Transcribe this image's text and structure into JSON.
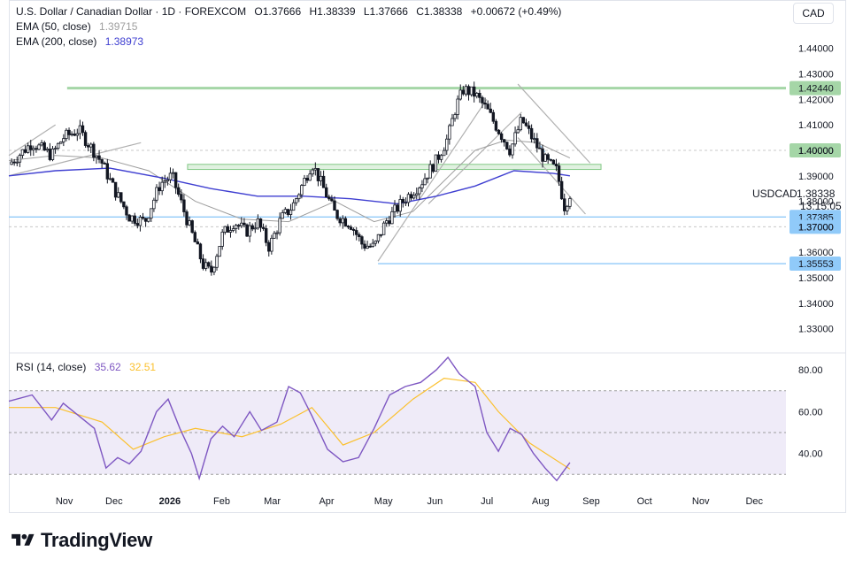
{
  "header": {
    "title": "U.S. Dollar / Canadian Dollar · 1D · FOREXCOM",
    "open": "O1.37666",
    "high": "H1.38339",
    "low": "L1.37666",
    "close": "C1.38338",
    "change": "+0.00672 (+0.49%)",
    "ema50_label": "EMA (50, close)",
    "ema50_value": "1.39715",
    "ema200_label": "EMA (200, close)",
    "ema200_value": "1.38973",
    "currency": "CAD"
  },
  "symbol": {
    "name": "USDCAD",
    "price": "1.38338",
    "countdown": "13:15:05"
  },
  "rsi_header": {
    "label": "RSI (14, close)",
    "value": "35.62",
    "ma_value": "32.51"
  },
  "brand": {
    "name": "TradingView"
  },
  "colors": {
    "up": "#131722",
    "down": "#131722",
    "ema50": "#9e9e9e",
    "ema200": "#3f3fd1",
    "support": "#90caf9",
    "resistance": "#a5d6a7",
    "rsi": "#7e57c2",
    "rsi_ma": "#fbc02d"
  },
  "chart_data": [
    {
      "type": "candlestick",
      "title": "U.S. Dollar / Canadian Dollar · 1D · FOREXCOM",
      "x_ticks": [
        "Nov",
        "Dec",
        "2026",
        "Feb",
        "Mar",
        "Apr",
        "May",
        "Jun",
        "Jul",
        "Aug",
        "Sep",
        "Oct",
        "Nov",
        "Dec"
      ],
      "y_ticks": [
        1.44,
        1.43,
        1.42,
        1.41,
        1.4,
        1.39,
        1.38,
        1.37,
        1.36,
        1.35,
        1.34,
        1.33
      ],
      "y_tick_labels": [
        "1.44000",
        "1.43000",
        "1.42000",
        "1.41000",
        "1.40000",
        "1.39000",
        "1.38000",
        "1.37000",
        "1.36000",
        "1.35000",
        "1.34000",
        "1.33000"
      ],
      "ylim": [
        1.325,
        1.4465
      ],
      "price_levels": [
        {
          "value": 1.4244,
          "label": "1.42440",
          "kind": "resistance"
        },
        {
          "value": 1.4,
          "label": "1.40000",
          "kind": "round"
        },
        {
          "value": 1.37385,
          "label": "1.37385",
          "kind": "support"
        },
        {
          "value": 1.37,
          "label": "1.37000",
          "kind": "support"
        },
        {
          "value": 1.35553,
          "label": "1.35553",
          "kind": "support"
        }
      ],
      "last_price": {
        "value": 1.38338,
        "label": "1.38338"
      },
      "zone": {
        "from": 1.3925,
        "to": 1.3945
      },
      "close_path": [
        [
          0,
          1.3945
        ],
        [
          0.03,
          1.403
        ],
        [
          0.055,
          1.398
        ],
        [
          0.07,
          1.405
        ],
        [
          0.09,
          1.408
        ],
        [
          0.12,
          1.395
        ],
        [
          0.135,
          1.385
        ],
        [
          0.155,
          1.374
        ],
        [
          0.175,
          1.372
        ],
        [
          0.195,
          1.387
        ],
        [
          0.21,
          1.39
        ],
        [
          0.23,
          1.372
        ],
        [
          0.25,
          1.355
        ],
        [
          0.26,
          1.352
        ],
        [
          0.275,
          1.367
        ],
        [
          0.29,
          1.372
        ],
        [
          0.305,
          1.368
        ],
        [
          0.32,
          1.372
        ],
        [
          0.335,
          1.362
        ],
        [
          0.35,
          1.373
        ],
        [
          0.365,
          1.378
        ],
        [
          0.38,
          1.388
        ],
        [
          0.39,
          1.395
        ],
        [
          0.405,
          1.385
        ],
        [
          0.42,
          1.375
        ],
        [
          0.44,
          1.371
        ],
        [
          0.455,
          1.363
        ],
        [
          0.47,
          1.362
        ],
        [
          0.485,
          1.372
        ],
        [
          0.51,
          1.381
        ],
        [
          0.53,
          1.387
        ],
        [
          0.55,
          1.396
        ],
        [
          0.565,
          1.405
        ],
        [
          0.575,
          1.417
        ],
        [
          0.585,
          1.424
        ],
        [
          0.6,
          1.422
        ],
        [
          0.615,
          1.416
        ],
        [
          0.63,
          1.408
        ],
        [
          0.645,
          1.4
        ],
        [
          0.66,
          1.412
        ],
        [
          0.675,
          1.404
        ],
        [
          0.69,
          1.396
        ],
        [
          0.705,
          1.392
        ],
        [
          0.715,
          1.378
        ],
        [
          0.722,
          1.383
        ]
      ],
      "ema50_path": [
        [
          0,
          1.396
        ],
        [
          0.06,
          1.398
        ],
        [
          0.12,
          1.397
        ],
        [
          0.18,
          1.392
        ],
        [
          0.24,
          1.38
        ],
        [
          0.3,
          1.373
        ],
        [
          0.36,
          1.372
        ],
        [
          0.42,
          1.38
        ],
        [
          0.47,
          1.372
        ],
        [
          0.52,
          1.376
        ],
        [
          0.56,
          1.388
        ],
        [
          0.6,
          1.4
        ],
        [
          0.64,
          1.404
        ],
        [
          0.68,
          1.403
        ],
        [
          0.722,
          1.397
        ]
      ],
      "ema200_path": [
        [
          0,
          1.39
        ],
        [
          0.06,
          1.392
        ],
        [
          0.13,
          1.393
        ],
        [
          0.2,
          1.389
        ],
        [
          0.26,
          1.385
        ],
        [
          0.32,
          1.382
        ],
        [
          0.38,
          1.382
        ],
        [
          0.44,
          1.381
        ],
        [
          0.5,
          1.379
        ],
        [
          0.55,
          1.382
        ],
        [
          0.6,
          1.386
        ],
        [
          0.65,
          1.392
        ],
        [
          0.7,
          1.391
        ],
        [
          0.722,
          1.39
        ]
      ]
    },
    {
      "type": "line",
      "title": "RSI (14, close)",
      "y_ticks": [
        80,
        60,
        40
      ],
      "y_tick_labels": [
        "80.00",
        "60.00",
        "40.00"
      ],
      "ylim": [
        25,
        86
      ],
      "band": [
        30,
        70
      ],
      "series": [
        {
          "name": "RSI (14, close)",
          "values_path": [
            [
              0,
              65
            ],
            [
              0.03,
              68
            ],
            [
              0.055,
              56
            ],
            [
              0.07,
              64
            ],
            [
              0.09,
              58
            ],
            [
              0.11,
              52
            ],
            [
              0.125,
              33
            ],
            [
              0.14,
              38
            ],
            [
              0.155,
              35
            ],
            [
              0.17,
              41
            ],
            [
              0.19,
              60
            ],
            [
              0.205,
              66
            ],
            [
              0.22,
              52
            ],
            [
              0.235,
              40
            ],
            [
              0.245,
              28
            ],
            [
              0.26,
              47
            ],
            [
              0.275,
              53
            ],
            [
              0.29,
              48
            ],
            [
              0.31,
              60
            ],
            [
              0.325,
              51
            ],
            [
              0.345,
              55
            ],
            [
              0.36,
              72
            ],
            [
              0.375,
              69
            ],
            [
              0.39,
              58
            ],
            [
              0.41,
              42
            ],
            [
              0.43,
              36
            ],
            [
              0.45,
              38
            ],
            [
              0.47,
              52
            ],
            [
              0.49,
              68
            ],
            [
              0.51,
              72
            ],
            [
              0.53,
              74
            ],
            [
              0.55,
              80
            ],
            [
              0.565,
              86
            ],
            [
              0.58,
              78
            ],
            [
              0.6,
              72
            ],
            [
              0.615,
              50
            ],
            [
              0.63,
              41
            ],
            [
              0.645,
              52
            ],
            [
              0.66,
              49
            ],
            [
              0.675,
              40
            ],
            [
              0.69,
              33
            ],
            [
              0.705,
              27
            ],
            [
              0.722,
              35.62
            ]
          ]
        },
        {
          "name": "RSI-based MA",
          "values_path": [
            [
              0,
              62
            ],
            [
              0.06,
              62
            ],
            [
              0.12,
              55
            ],
            [
              0.16,
              42
            ],
            [
              0.2,
              48
            ],
            [
              0.24,
              52
            ],
            [
              0.3,
              48
            ],
            [
              0.35,
              54
            ],
            [
              0.39,
              62
            ],
            [
              0.43,
              44
            ],
            [
              0.47,
              50
            ],
            [
              0.52,
              66
            ],
            [
              0.56,
              76
            ],
            [
              0.6,
              74
            ],
            [
              0.63,
              60
            ],
            [
              0.67,
              45
            ],
            [
              0.722,
              32.51
            ]
          ]
        }
      ]
    }
  ]
}
